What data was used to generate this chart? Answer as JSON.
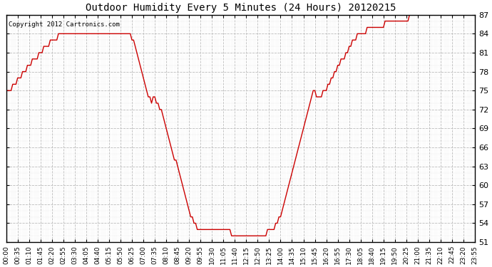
{
  "title": "Outdoor Humidity Every 5 Minutes (24 Hours) 20120215",
  "copyright_text": "Copyright 2012 Cartronics.com",
  "line_color": "#cc0000",
  "background_color": "#ffffff",
  "plot_background_color": "#ffffff",
  "grid_color": "#bbbbbb",
  "ylim": [
    51.0,
    87.0
  ],
  "yticks": [
    51.0,
    54.0,
    57.0,
    60.0,
    63.0,
    66.0,
    69.0,
    72.0,
    75.0,
    78.0,
    81.0,
    84.0,
    87.0
  ],
  "xtick_interval": 7,
  "humidity_values": [
    75,
    75,
    75,
    75,
    76,
    76,
    76,
    77,
    77,
    77,
    78,
    78,
    78,
    79,
    79,
    79,
    80,
    80,
    80,
    80,
    81,
    81,
    81,
    82,
    82,
    82,
    82,
    83,
    83,
    83,
    83,
    83,
    84,
    84,
    84,
    84,
    84,
    84,
    84,
    84,
    84,
    84,
    84,
    84,
    84,
    84,
    84,
    84,
    84,
    84,
    84,
    84,
    84,
    84,
    84,
    84,
    84,
    84,
    84,
    84,
    84,
    84,
    84,
    84,
    84,
    84,
    84,
    84,
    84,
    84,
    84,
    84,
    84,
    84,
    84,
    84,
    84,
    83,
    83,
    82,
    81,
    80,
    79,
    78,
    77,
    76,
    75,
    74,
    74,
    73,
    74,
    74,
    73,
    73,
    72,
    72,
    71,
    70,
    69,
    68,
    67,
    66,
    65,
    64,
    64,
    63,
    62,
    61,
    60,
    59,
    58,
    57,
    56,
    55,
    55,
    54,
    54,
    53,
    53,
    53,
    53,
    53,
    53,
    53,
    53,
    53,
    53,
    53,
    53,
    53,
    53,
    53,
    53,
    53,
    53,
    53,
    53,
    53,
    52,
    52,
    52,
    52,
    52,
    52,
    52,
    52,
    52,
    52,
    52,
    52,
    52,
    52,
    52,
    52,
    52,
    52,
    52,
    52,
    52,
    52,
    53,
    53,
    53,
    53,
    53,
    54,
    54,
    55,
    55,
    56,
    57,
    58,
    59,
    60,
    61,
    62,
    63,
    64,
    65,
    66,
    67,
    68,
    69,
    70,
    71,
    72,
    73,
    74,
    75,
    75,
    74,
    74,
    74,
    74,
    75,
    75,
    75,
    76,
    76,
    77,
    77,
    78,
    78,
    79,
    79,
    80,
    80,
    80,
    81,
    81,
    82,
    82,
    83,
    83,
    83,
    84,
    84,
    84,
    84,
    84,
    84,
    85,
    85,
    85,
    85,
    85,
    85,
    85,
    85,
    85,
    85,
    85,
    86,
    86,
    86,
    86,
    86,
    86,
    86,
    86,
    86,
    86,
    86,
    86,
    86,
    86,
    86,
    87,
    87,
    87,
    87,
    87,
    87,
    87,
    87,
    87,
    87,
    87,
    87,
    87,
    87,
    87,
    87,
    87,
    87,
    87,
    87,
    87,
    87,
    87,
    87,
    87,
    87,
    87,
    87,
    87,
    87,
    87,
    87,
    87,
    87,
    87,
    87,
    87,
    87,
    87,
    87,
    87
  ]
}
